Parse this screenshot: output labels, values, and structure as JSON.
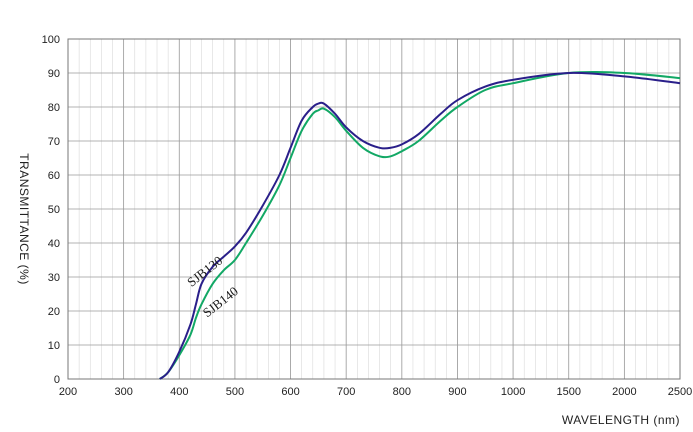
{
  "chart_data": {
    "type": "line",
    "title": "",
    "xlabel": "WAVELENGTH (nm)",
    "ylabel": "TRANSMITTANCE (%)",
    "ylim": [
      0,
      100
    ],
    "grid": true,
    "legend": "inline labels near curves",
    "x_tick_labels": [
      "200",
      "300",
      "400",
      "500",
      "600",
      "700",
      "800",
      "900",
      "1000",
      "1500",
      "2000",
      "2500"
    ],
    "y_tick_labels": [
      "0",
      "10",
      "20",
      "30",
      "40",
      "50",
      "60",
      "70",
      "80",
      "90",
      "100"
    ],
    "series": [
      {
        "name": "SJB130",
        "color": "#2a1f8a",
        "x": [
          365,
          380,
          400,
          420,
          430,
          440,
          460,
          480,
          500,
          520,
          550,
          580,
          600,
          620,
          640,
          650,
          660,
          680,
          700,
          730,
          760,
          780,
          800,
          830,
          870,
          900,
          950,
          1000,
          1500,
          2000,
          2500
        ],
        "y": [
          0,
          2,
          8,
          16,
          22,
          28,
          33,
          36,
          39,
          43,
          51,
          60,
          68,
          76,
          80,
          81,
          81,
          78,
          74,
          70,
          68,
          68,
          69,
          72,
          78,
          82,
          86,
          88,
          90,
          89,
          87
        ]
      },
      {
        "name": "SJB140",
        "color": "#12a865",
        "x": [
          365,
          380,
          400,
          420,
          430,
          440,
          460,
          480,
          500,
          520,
          550,
          580,
          600,
          620,
          640,
          650,
          660,
          680,
          700,
          730,
          760,
          780,
          800,
          830,
          870,
          900,
          950,
          1000,
          1500,
          2000,
          2500
        ],
        "y": [
          0,
          2,
          7,
          13,
          18,
          22,
          28,
          32,
          35,
          40,
          48,
          57,
          65,
          73,
          78,
          79,
          79.5,
          77,
          73,
          68,
          65.5,
          65.5,
          67,
          70,
          76,
          80,
          85,
          87,
          90,
          90,
          88.5
        ]
      }
    ]
  }
}
